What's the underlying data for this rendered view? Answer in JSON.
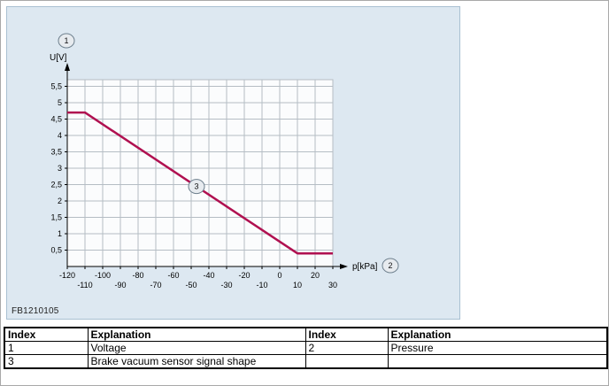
{
  "figure": {
    "code": "FB1210105",
    "y_axis_label": "U[V]",
    "x_axis_label": "p[kPa]",
    "callouts": {
      "one": "1",
      "two": "2",
      "three": "3"
    },
    "panel_bg": "#dde8f1"
  },
  "chart_data": {
    "type": "line",
    "title": "",
    "xlabel": "p[kPa]",
    "ylabel": "U[V]",
    "xlim": [
      -120,
      30
    ],
    "ylim": [
      0,
      5.7
    ],
    "x_ticks": [
      -120,
      -110,
      -100,
      -90,
      -80,
      -70,
      -60,
      -50,
      -40,
      -30,
      -20,
      -10,
      0,
      10,
      20,
      30
    ],
    "y_tick_labels": [
      "0,5",
      "1",
      "1,5",
      "2",
      "2,5",
      "3",
      "3,5",
      "4",
      "4,5",
      "5",
      "5,5"
    ],
    "y_tick_values": [
      0.5,
      1,
      1.5,
      2,
      2.5,
      3,
      3.5,
      4,
      4.5,
      5,
      5.5
    ],
    "grid": true,
    "legend_position": "none",
    "line_color": "#b01050",
    "series": [
      {
        "name": "Brake vacuum sensor signal shape",
        "points": [
          [
            -120,
            4.7
          ],
          [
            -110,
            4.7
          ],
          [
            10,
            0.4
          ],
          [
            30,
            0.4
          ]
        ]
      }
    ],
    "callout_on_line": {
      "x": -47,
      "label": "3"
    }
  },
  "table": {
    "headers": [
      "Index",
      "Explanation",
      "Index",
      "Explanation"
    ],
    "rows": [
      [
        "1",
        "Voltage",
        "2",
        "Pressure"
      ],
      [
        "3",
        "Brake vacuum sensor signal shape",
        "",
        ""
      ]
    ]
  }
}
